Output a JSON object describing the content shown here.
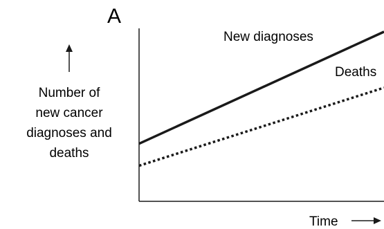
{
  "chart_data": {
    "type": "line",
    "panel_label": "A",
    "ylabel_lines": [
      "Number of",
      "new cancer",
      "diagnoses and",
      "deaths"
    ],
    "xlabel": "Time",
    "x": [
      0,
      1
    ],
    "series": [
      {
        "name": "New diagnoses",
        "values": [
          0.34,
          1.0
        ],
        "style": "solid",
        "color": "#1a1a1a"
      },
      {
        "name": "Deaths",
        "values": [
          0.21,
          0.67
        ],
        "style": "dotted",
        "color": "#1a1a1a"
      }
    ],
    "xlim": [
      0,
      1
    ],
    "ylim": [
      0,
      1.02
    ],
    "grid": false,
    "axis_ticks": false
  }
}
